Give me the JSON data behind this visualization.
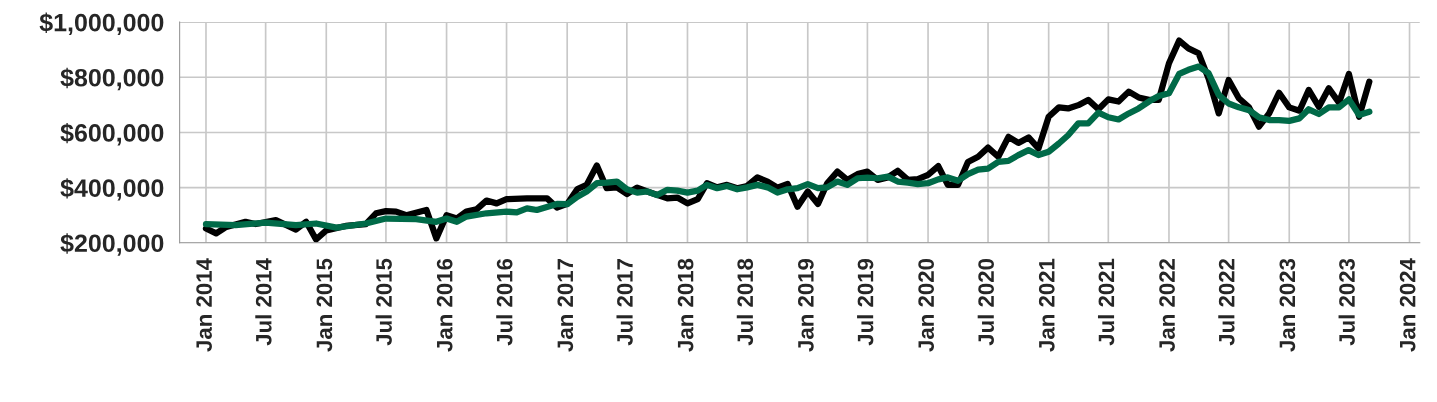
{
  "chart_data": {
    "type": "line",
    "series": [
      {
        "color": "#000000",
        "x": [
          "2014-01",
          "2014-02",
          "2014-03",
          "2014-05",
          "2014-06",
          "2014-08",
          "2014-10",
          "2014-11",
          "2014-12",
          "2015-01",
          "2015-03",
          "2015-05",
          "2015-06",
          "2015-07",
          "2015-08",
          "2015-09",
          "2015-11",
          "2015-12",
          "2016-01",
          "2016-02",
          "2016-03",
          "2016-04",
          "2016-05",
          "2016-06",
          "2016-07",
          "2016-09",
          "2016-11",
          "2016-12",
          "2017-01",
          "2017-02",
          "2017-03",
          "2017-04",
          "2017-05",
          "2017-06",
          "2017-07",
          "2017-08",
          "2017-09",
          "2017-11",
          "2017-12",
          "2018-01",
          "2018-02",
          "2018-03",
          "2018-04",
          "2018-05",
          "2018-06",
          "2018-07",
          "2018-08",
          "2018-09",
          "2018-10",
          "2018-11",
          "2018-12",
          "2019-01",
          "2019-02",
          "2019-03",
          "2019-04",
          "2019-05",
          "2019-06",
          "2019-07",
          "2019-08",
          "2019-09",
          "2019-10",
          "2019-11",
          "2019-12",
          "2020-01",
          "2020-02",
          "2020-03",
          "2020-04",
          "2020-05",
          "2020-06",
          "2020-07",
          "2020-08",
          "2020-09",
          "2020-10",
          "2020-11",
          "2020-12",
          "2021-01",
          "2021-02",
          "2021-03",
          "2021-04",
          "2021-05",
          "2021-06",
          "2021-07",
          "2021-08",
          "2021-09",
          "2021-10",
          "2021-11",
          "2021-12",
          "2022-01",
          "2022-02",
          "2022-03",
          "2022-04",
          "2022-05",
          "2022-06",
          "2022-07",
          "2022-08",
          "2022-09",
          "2022-10",
          "2022-11",
          "2022-12",
          "2023-01",
          "2023-02",
          "2023-03",
          "2023-04",
          "2023-05",
          "2023-06",
          "2023-07",
          "2023-08",
          "2023-09"
        ],
        "values": [
          252000,
          234000,
          256000,
          276000,
          268000,
          282000,
          248000,
          276000,
          212000,
          245000,
          261000,
          268000,
          307000,
          315000,
          313000,
          300000,
          319000,
          216000,
          300000,
          288000,
          313000,
          321000,
          353000,
          343000,
          358000,
          361000,
          361000,
          328000,
          341000,
          395000,
          410000,
          480000,
          398000,
          401000,
          377000,
          400000,
          386000,
          361000,
          364000,
          343000,
          358000,
          416000,
          401000,
          410000,
          398000,
          406000,
          437000,
          422000,
          400000,
          413000,
          331000,
          386000,
          341000,
          416000,
          458000,
          428000,
          449000,
          458000,
          428000,
          437000,
          461000,
          428000,
          431000,
          446000,
          478000,
          410000,
          410000,
          493000,
          512000,
          545000,
          512000,
          584000,
          562000,
          582000,
          542000,
          657000,
          691000,
          687000,
          699000,
          718000,
          684000,
          720000,
          712000,
          748000,
          727000,
          718000,
          718000,
          851000,
          933000,
          905000,
          887000,
          796000,
          669000,
          790000,
          724000,
          691000,
          621000,
          669000,
          744000,
          691000,
          679000,
          754000,
          693000,
          760000,
          708000,
          812000,
          657000,
          784000
        ]
      },
      {
        "color": "#006a48",
        "x": [
          "2014-01",
          "2014-04",
          "2014-07",
          "2014-10",
          "2014-12",
          "2015-02",
          "2015-05",
          "2015-07",
          "2015-10",
          "2015-12",
          "2016-01",
          "2016-02",
          "2016-03",
          "2016-05",
          "2016-07",
          "2016-08",
          "2016-09",
          "2016-10",
          "2016-12",
          "2017-01",
          "2017-02",
          "2017-03",
          "2017-04",
          "2017-05",
          "2017-06",
          "2017-07",
          "2017-08",
          "2017-09",
          "2017-10",
          "2017-11",
          "2017-12",
          "2018-01",
          "2018-02",
          "2018-03",
          "2018-04",
          "2018-05",
          "2018-06",
          "2018-07",
          "2018-08",
          "2018-09",
          "2018-10",
          "2018-11",
          "2018-12",
          "2019-01",
          "2019-02",
          "2019-03",
          "2019-04",
          "2019-05",
          "2019-06",
          "2019-07",
          "2019-08",
          "2019-09",
          "2019-10",
          "2019-11",
          "2019-12",
          "2020-01",
          "2020-02",
          "2020-03",
          "2020-04",
          "2020-05",
          "2020-06",
          "2020-07",
          "2020-08",
          "2020-09",
          "2020-10",
          "2020-11",
          "2020-12",
          "2021-01",
          "2021-02",
          "2021-03",
          "2021-04",
          "2021-05",
          "2021-06",
          "2021-07",
          "2021-08",
          "2021-09",
          "2021-10",
          "2021-11",
          "2021-12",
          "2022-01",
          "2022-02",
          "2022-03",
          "2022-04",
          "2022-05",
          "2022-06",
          "2022-07",
          "2022-08",
          "2022-09",
          "2022-10",
          "2022-11",
          "2022-12",
          "2023-01",
          "2023-02",
          "2023-03",
          "2023-04",
          "2023-05",
          "2023-06",
          "2023-07",
          "2023-08",
          "2023-09"
        ],
        "values": [
          268000,
          264000,
          273000,
          264000,
          270000,
          255000,
          270000,
          288000,
          286000,
          276000,
          288000,
          276000,
          295000,
          307000,
          313000,
          310000,
          325000,
          319000,
          341000,
          340000,
          367000,
          386000,
          416000,
          418000,
          422000,
          394000,
          382000,
          386000,
          373000,
          392000,
          389000,
          382000,
          389000,
          410000,
          398000,
          406000,
          394000,
          401000,
          410000,
          401000,
          382000,
          394000,
          398000,
          413000,
          398000,
          401000,
          422000,
          410000,
          434000,
          436000,
          434000,
          440000,
          422000,
          418000,
          413000,
          416000,
          430000,
          437000,
          425000,
          449000,
          465000,
          469000,
          493000,
          497000,
          518000,
          536000,
          518000,
          530000,
          560000,
          590000,
          633000,
          633000,
          672000,
          655000,
          647000,
          669000,
          687000,
          712000,
          732000,
          742000,
          812000,
          827000,
          839000,
          815000,
          736000,
          705000,
          691000,
          681000,
          655000,
          645000,
          645000,
          642000,
          651000,
          684000,
          667000,
          691000,
          691000,
          720000,
          663000,
          675000
        ]
      }
    ],
    "xlim": [
      "2013-10-13",
      "2024-02-01"
    ],
    "xticks": [
      {
        "value": "2014-01",
        "label": "Jan 2014"
      },
      {
        "value": "2014-07",
        "label": "Jul 2014"
      },
      {
        "value": "2015-01",
        "label": "Jan 2015"
      },
      {
        "value": "2015-07",
        "label": "Jul 2015"
      },
      {
        "value": "2016-01",
        "label": "Jan 2016"
      },
      {
        "value": "2016-07",
        "label": "Jul 2016"
      },
      {
        "value": "2017-01",
        "label": "Jan 2017"
      },
      {
        "value": "2017-07",
        "label": "Jul 2017"
      },
      {
        "value": "2018-01",
        "label": "Jan 2018"
      },
      {
        "value": "2018-07",
        "label": "Jul 2018"
      },
      {
        "value": "2019-01",
        "label": "Jan 2019"
      },
      {
        "value": "2019-07",
        "label": "Jul 2019"
      },
      {
        "value": "2020-01",
        "label": "Jan 2020"
      },
      {
        "value": "2020-07",
        "label": "Jul 2020"
      },
      {
        "value": "2021-01",
        "label": "Jan 2021"
      },
      {
        "value": "2021-07",
        "label": "Jul 2021"
      },
      {
        "value": "2022-01",
        "label": "Jan 2022"
      },
      {
        "value": "2022-07",
        "label": "Jul 2022"
      },
      {
        "value": "2023-01",
        "label": "Jan 2023"
      },
      {
        "value": "2023-07",
        "label": "Jul 2023"
      },
      {
        "value": "2024-01",
        "label": "Jan 2024"
      }
    ],
    "ylim": [
      200000,
      1000000
    ],
    "yticks": [
      {
        "value": 200000,
        "label": "$200,000"
      },
      {
        "value": 400000,
        "label": "$400,000"
      },
      {
        "value": 600000,
        "label": "$600,000"
      },
      {
        "value": 800000,
        "label": "$800,000"
      },
      {
        "value": 1000000,
        "label": "$1,000,000"
      }
    ],
    "grid": true,
    "line_style": "solid",
    "marker": "none",
    "legend": false
  }
}
